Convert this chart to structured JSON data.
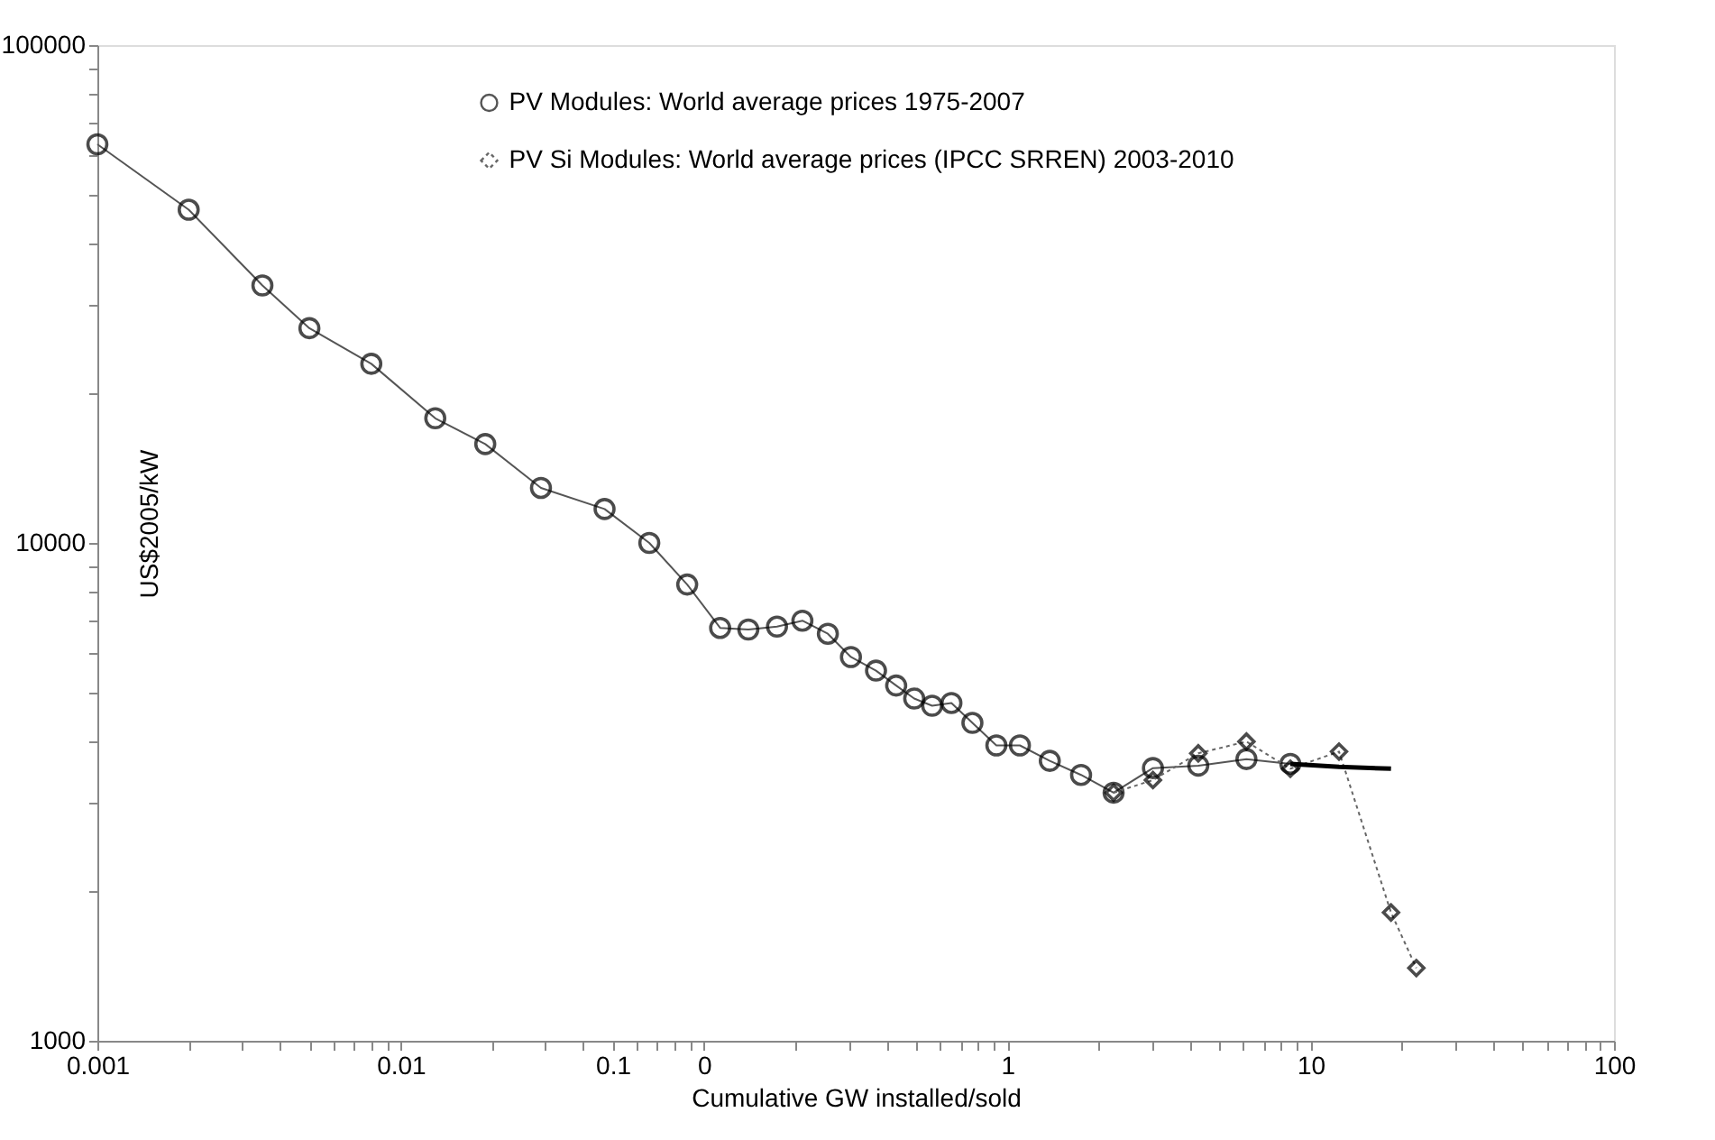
{
  "chart_data": {
    "type": "line",
    "xlabel": "Cumulative  GW installed/sold",
    "ylabel": "US$2005/kW",
    "log": "xy",
    "grid": false,
    "legend": "top",
    "xlim": [
      0.001,
      100
    ],
    "ylim": [
      1000,
      100000
    ],
    "xticks": [
      {
        "value": 0.001,
        "label": "0.001"
      },
      {
        "value": 0.002,
        "label": null
      },
      {
        "value": 0.003,
        "label": null
      },
      {
        "value": 0.004,
        "label": null
      },
      {
        "value": 0.005,
        "label": null
      },
      {
        "value": 0.006,
        "label": null
      },
      {
        "value": 0.007,
        "label": null
      },
      {
        "value": 0.008,
        "label": null
      },
      {
        "value": 0.009,
        "label": null
      },
      {
        "value": 0.01,
        "label": "0.01"
      },
      {
        "value": 0.02,
        "label": null
      },
      {
        "value": 0.03,
        "label": null
      },
      {
        "value": 0.04,
        "label": null
      },
      {
        "value": 0.05,
        "label": "0.1"
      },
      {
        "value": 0.06,
        "label": null
      },
      {
        "value": 0.07,
        "label": null
      },
      {
        "value": 0.08,
        "label": null
      },
      {
        "value": 0.09,
        "label": null
      },
      {
        "value": 0.1,
        "label": "0"
      },
      {
        "value": 0.2,
        "label": null
      },
      {
        "value": 0.3,
        "label": null
      },
      {
        "value": 0.4,
        "label": null
      },
      {
        "value": 0.5,
        "label": null
      },
      {
        "value": 0.6,
        "label": null
      },
      {
        "value": 0.7,
        "label": null
      },
      {
        "value": 0.8,
        "label": null
      },
      {
        "value": 0.9,
        "label": null
      },
      {
        "value": 1,
        "label": "1"
      },
      {
        "value": 2,
        "label": null
      },
      {
        "value": 3,
        "label": null
      },
      {
        "value": 4,
        "label": null
      },
      {
        "value": 5,
        "label": null
      },
      {
        "value": 6,
        "label": null
      },
      {
        "value": 7,
        "label": null
      },
      {
        "value": 8,
        "label": null
      },
      {
        "value": 9,
        "label": null
      },
      {
        "value": 10,
        "label": "10"
      },
      {
        "value": 20,
        "label": null
      },
      {
        "value": 30,
        "label": null
      },
      {
        "value": 40,
        "label": null
      },
      {
        "value": 50,
        "label": null
      },
      {
        "value": 60,
        "label": null
      },
      {
        "value": 70,
        "label": null
      },
      {
        "value": 80,
        "label": null
      },
      {
        "value": 90,
        "label": null
      },
      {
        "value": 100,
        "label": "100"
      }
    ],
    "yticks": [
      {
        "value": 1000,
        "label": "1000"
      },
      {
        "value": 2000,
        "label": null
      },
      {
        "value": 3000,
        "label": null
      },
      {
        "value": 4000,
        "label": null
      },
      {
        "value": 5000,
        "label": null
      },
      {
        "value": 6000,
        "label": null
      },
      {
        "value": 7000,
        "label": null
      },
      {
        "value": 8000,
        "label": null
      },
      {
        "value": 9000,
        "label": null
      },
      {
        "value": 10000,
        "label": "10000"
      },
      {
        "value": 20000,
        "label": null
      },
      {
        "value": 30000,
        "label": null
      },
      {
        "value": 40000,
        "label": null
      },
      {
        "value": 50000,
        "label": null
      },
      {
        "value": 60000,
        "label": null
      },
      {
        "value": 70000,
        "label": null
      },
      {
        "value": 80000,
        "label": null
      },
      {
        "value": 90000,
        "label": null
      },
      {
        "value": 100000,
        "label": "100000"
      }
    ],
    "series": [
      {
        "name": "PV Modules: World average prices 1975-2007",
        "color": "#555555",
        "marker": "circle",
        "line_style": "solid",
        "x": [
          0.001,
          0.002,
          0.0035,
          0.005,
          0.008,
          0.013,
          0.019,
          0.029,
          0.047,
          0.066,
          0.088,
          0.113,
          0.14,
          0.174,
          0.211,
          0.256,
          0.305,
          0.369,
          0.43,
          0.493,
          0.565,
          0.654,
          0.767,
          0.92,
          1.1,
          1.38,
          1.75,
          2.24,
          3.02,
          4.26,
          6.14,
          8.57
        ],
        "values": [
          63200,
          46700,
          32900,
          27000,
          22900,
          17800,
          15800,
          12900,
          11700,
          10000,
          8250,
          6750,
          6700,
          6790,
          6980,
          6570,
          5900,
          5540,
          5170,
          4870,
          4710,
          4770,
          4350,
          3920,
          3920,
          3650,
          3420,
          3150,
          3530,
          3570,
          3680,
          3600
        ]
      },
      {
        "name": "PV Si Modules: World average prices (IPCC SRREN) 2003-2010",
        "color": "#666666",
        "marker": "diamond",
        "line_style": "dotted",
        "x": [
          2.24,
          3.02,
          4.26,
          6.14,
          8.57,
          12.4,
          18.4,
          22.3
        ],
        "values": [
          3150,
          3340,
          3780,
          3990,
          3520,
          3810,
          1810,
          1400
        ]
      },
      {
        "color": "#000000",
        "marker": "none",
        "line_style": "solid",
        "x": [
          8.57,
          12.4,
          18.4
        ],
        "values": [
          3600,
          3550,
          3520
        ]
      }
    ]
  }
}
